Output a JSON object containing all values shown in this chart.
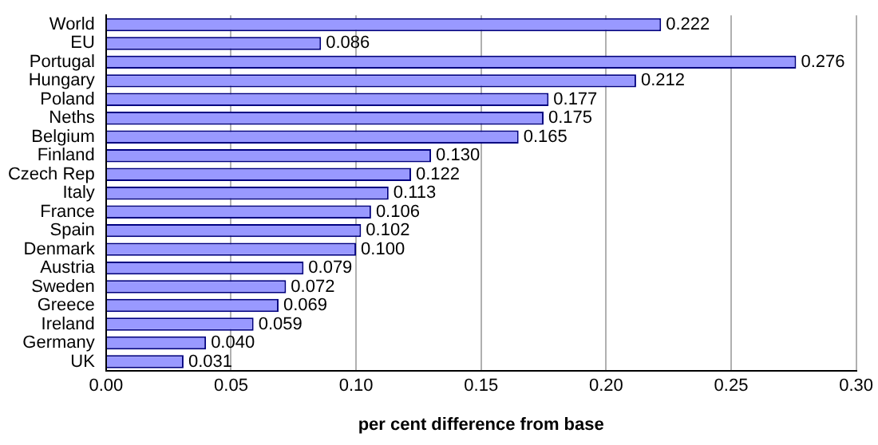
{
  "chart_data": {
    "type": "bar",
    "orientation": "horizontal",
    "xlabel": "per cent difference from base",
    "categories": [
      "World",
      "EU",
      "Portugal",
      "Hungary",
      "Poland",
      "Neths",
      "Belgium",
      "Finland",
      "Czech Rep",
      "Italy",
      "France",
      "Spain",
      "Denmark",
      "Austria",
      "Sweden",
      "Greece",
      "Ireland",
      "Germany",
      "UK"
    ],
    "values": [
      0.222,
      0.086,
      0.276,
      0.212,
      0.177,
      0.175,
      0.165,
      0.13,
      0.122,
      0.113,
      0.106,
      0.102,
      0.1,
      0.079,
      0.072,
      0.069,
      0.059,
      0.04,
      0.031
    ],
    "value_labels": [
      "0.222",
      "0.086",
      "0.276",
      "0.212",
      "0.177",
      "0.175",
      "0.165",
      "0.130",
      "0.122",
      "0.113",
      "0.106",
      "0.102",
      "0.100",
      "0.079",
      "0.072",
      "0.069",
      "0.059",
      "0.040",
      "0.031"
    ],
    "color": "#9999ff",
    "xlim": [
      0,
      0.3
    ],
    "xticks": [
      {
        "value": 0,
        "label": "0.00"
      },
      {
        "value": 0.05,
        "label": "0.05"
      },
      {
        "value": 0.1,
        "label": "0.10"
      },
      {
        "value": 0.15,
        "label": "0.15"
      },
      {
        "value": 0.2,
        "label": "0.20"
      },
      {
        "value": 0.25,
        "label": "0.25"
      },
      {
        "value": 0.3,
        "label": "0.30"
      }
    ],
    "grid": "x"
  }
}
